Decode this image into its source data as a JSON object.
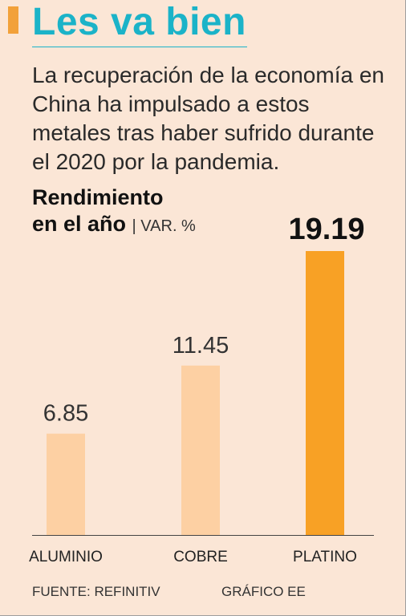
{
  "header": {
    "title": "Les va bien",
    "subtitle": "La recuperación de la economía en China ha impulsado a estos metales tras haber sufrido durante el 2020 por la pandemia."
  },
  "metric": {
    "line1": "Rendimiento",
    "line2": "en el año",
    "unit": "| VAR. %"
  },
  "colors": {
    "title": "#1bb3c8",
    "accent": "#f2a13a",
    "bar_light": "#fdd0a3",
    "bar_highlight": "#f8a125",
    "background": "#fbe6d6"
  },
  "chart_data": {
    "type": "bar",
    "categories": [
      "ALUMINIO",
      "COBRE",
      "PLATINO"
    ],
    "values": [
      6.85,
      11.45,
      19.19
    ],
    "value_labels": [
      "6.85",
      "11.45",
      "19.19"
    ],
    "highlight_index": 2,
    "title": "Rendimiento en el año",
    "ylabel": "VAR. %",
    "ylim": [
      0,
      19.19
    ],
    "grid": false,
    "legend": "none"
  },
  "footer": {
    "source": "FUENTE: REFINITIV",
    "credit": "GRÁFICO EE"
  }
}
